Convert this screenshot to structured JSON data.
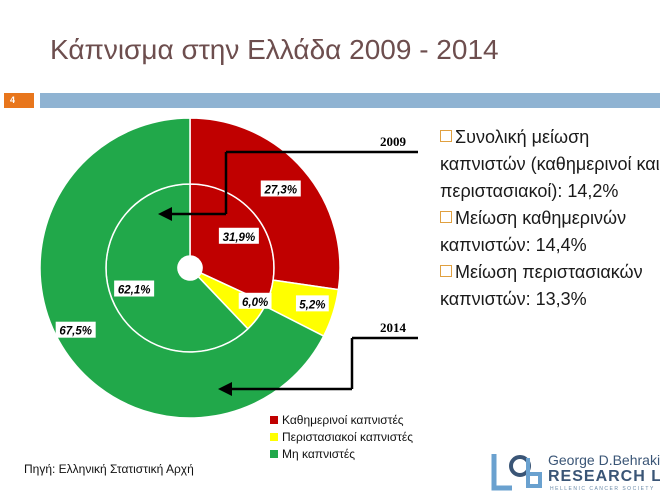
{
  "slide": {
    "title": "Κάπνισμα στην Ελλάδα 2009 - 2014",
    "number": "4",
    "accent_color": "#8fb3d2",
    "number_color": "#e8761c"
  },
  "chart_data": {
    "type": "pie",
    "subtype": "double-ring donut",
    "categories": [
      "Καθημερινοί καπνιστές",
      "Περιστασιακοί καπνιστές",
      "Μη καπνιστές"
    ],
    "colors": [
      "#c00000",
      "#ffff00",
      "#21a84a"
    ],
    "series": [
      {
        "name": "2009",
        "ring": "inner",
        "values": [
          31.9,
          6.0,
          62.1
        ],
        "labels": [
          "31,9%",
          "6,0%",
          "62,1%"
        ]
      },
      {
        "name": "2014",
        "ring": "outer",
        "values": [
          27.3,
          5.2,
          67.5
        ],
        "labels": [
          "27,3%",
          "5,2%",
          "67,5%"
        ]
      }
    ],
    "legend_position": "bottom"
  },
  "annotations": {
    "year_inner": "2009",
    "year_outer": "2014"
  },
  "bullets": [
    {
      "text": "Συνολική μείωση καπνιστών (καθημερινοί και περιστασιακοί):  14,2%"
    },
    {
      "text": "Μείωση καθημερινών καπνιστών:  14,4%"
    },
    {
      "text": "Μείωση περιστασιακών καπνιστών:  13,3%"
    }
  ],
  "source": "Πηγή: Ελληνική Στατιστική Αρχή",
  "logo": {
    "name": "George D.Behrakis",
    "lab": "RESEARCH LAB",
    "subtitle": "HELLENIC CANCER SOCIETY"
  }
}
